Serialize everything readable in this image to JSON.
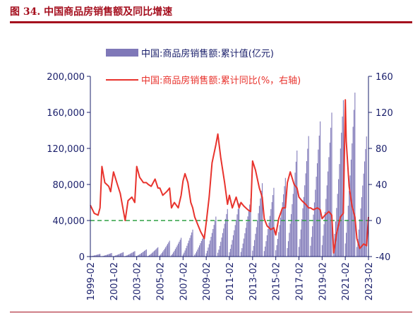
{
  "figure": {
    "title": "图 34. 中国商品房销售额及同比增速"
  },
  "colors": {
    "title": "#a50f1e",
    "bars": "#7f78b8",
    "line": "#e8332d",
    "zero_line": "#2ea043",
    "axis": "#1a1f6b"
  },
  "chart_data": {
    "type": "bar",
    "title": "",
    "legend_position": "top",
    "grid": false,
    "x_tick_labels": [
      "1999-02",
      "2001-02",
      "2003-02",
      "2005-02",
      "2007-02",
      "2009-02",
      "2011-02",
      "2013-02",
      "2015-02",
      "2017-02",
      "2019-02",
      "2021-02",
      "2023-02"
    ],
    "y_left": {
      "ylim": [
        0,
        200000
      ],
      "ticks": [
        "0",
        "40,000",
        "80,000",
        "120,000",
        "160,000",
        "200,000"
      ]
    },
    "y_right": {
      "ylim": [
        -40,
        160
      ],
      "ticks": [
        "-40",
        "0",
        "40",
        "80",
        "120",
        "160"
      ]
    },
    "series": [
      {
        "name": "中国:商品房销售额:累计值(亿元)",
        "kind": "bar",
        "axis": "left",
        "year_totals": [
          {
            "year": 1999,
            "total": 2987
          },
          {
            "year": 2000,
            "total": 3935
          },
          {
            "year": 2001,
            "total": 4863
          },
          {
            "year": 2002,
            "total": 6032
          },
          {
            "year": 2003,
            "total": 7956
          },
          {
            "year": 2004,
            "total": 10376
          },
          {
            "year": 2005,
            "total": 17576
          },
          {
            "year": 2006,
            "total": 20826
          },
          {
            "year": 2007,
            "total": 29889
          },
          {
            "year": 2008,
            "total": 25068
          },
          {
            "year": 2009,
            "total": 44355
          },
          {
            "year": 2010,
            "total": 52721
          },
          {
            "year": 2011,
            "total": 59119
          },
          {
            "year": 2012,
            "total": 64456
          },
          {
            "year": 2013,
            "total": 81428
          },
          {
            "year": 2014,
            "total": 76292
          },
          {
            "year": 2015,
            "total": 87281
          },
          {
            "year": 2016,
            "total": 117627
          },
          {
            "year": 2017,
            "total": 133701
          },
          {
            "year": 2018,
            "total": 149973
          },
          {
            "year": 2019,
            "total": 159725
          },
          {
            "year": 2020,
            "total": 173613
          },
          {
            "year": 2021,
            "total": 181930
          },
          {
            "year": 2022,
            "total": 133308
          },
          {
            "year": 2023,
            "total": 8545
          }
        ]
      },
      {
        "name": "中国:商品房销售额:累计同比(%，右轴)",
        "kind": "line",
        "axis": "right",
        "points": [
          {
            "x": "1999-02",
            "y": 17
          },
          {
            "x": "1999-06",
            "y": 8
          },
          {
            "x": "1999-10",
            "y": 6
          },
          {
            "x": "1999-12",
            "y": 14
          },
          {
            "x": "2000-02",
            "y": 60
          },
          {
            "x": "2000-05",
            "y": 42
          },
          {
            "x": "2000-09",
            "y": 38
          },
          {
            "x": "2000-11",
            "y": 32
          },
          {
            "x": "2001-02",
            "y": 54
          },
          {
            "x": "2001-06",
            "y": 40
          },
          {
            "x": "2001-09",
            "y": 30
          },
          {
            "x": "2001-12",
            "y": 12
          },
          {
            "x": "2002-02",
            "y": 0
          },
          {
            "x": "2002-05",
            "y": 22
          },
          {
            "x": "2002-09",
            "y": 26
          },
          {
            "x": "2002-12",
            "y": 20
          },
          {
            "x": "2003-02",
            "y": 60
          },
          {
            "x": "2003-05",
            "y": 48
          },
          {
            "x": "2003-09",
            "y": 42
          },
          {
            "x": "2003-12",
            "y": 42
          },
          {
            "x": "2004-02",
            "y": 40
          },
          {
            "x": "2004-05",
            "y": 38
          },
          {
            "x": "2004-09",
            "y": 46
          },
          {
            "x": "2004-12",
            "y": 36
          },
          {
            "x": "2005-02",
            "y": 36
          },
          {
            "x": "2005-05",
            "y": 28
          },
          {
            "x": "2005-09",
            "y": 32
          },
          {
            "x": "2005-12",
            "y": 36
          },
          {
            "x": "2006-02",
            "y": 14
          },
          {
            "x": "2006-05",
            "y": 20
          },
          {
            "x": "2006-09",
            "y": 14
          },
          {
            "x": "2006-12",
            "y": 28
          },
          {
            "x": "2007-02",
            "y": 44
          },
          {
            "x": "2007-04",
            "y": 52
          },
          {
            "x": "2007-07",
            "y": 42
          },
          {
            "x": "2007-10",
            "y": 20
          },
          {
            "x": "2007-12",
            "y": 14
          },
          {
            "x": "2008-02",
            "y": 4
          },
          {
            "x": "2008-05",
            "y": -4
          },
          {
            "x": "2008-08",
            "y": -12
          },
          {
            "x": "2008-12",
            "y": -20
          },
          {
            "x": "2009-02",
            "y": -2
          },
          {
            "x": "2009-05",
            "y": 26
          },
          {
            "x": "2009-08",
            "y": 64
          },
          {
            "x": "2009-12",
            "y": 84
          },
          {
            "x": "2010-02",
            "y": 96
          },
          {
            "x": "2010-05",
            "y": 70
          },
          {
            "x": "2010-09",
            "y": 42
          },
          {
            "x": "2010-12",
            "y": 18
          },
          {
            "x": "2011-02",
            "y": 28
          },
          {
            "x": "2011-05",
            "y": 14
          },
          {
            "x": "2011-09",
            "y": 26
          },
          {
            "x": "2011-12",
            "y": 14
          },
          {
            "x": "2012-02",
            "y": 20
          },
          {
            "x": "2012-05",
            "y": 16
          },
          {
            "x": "2012-09",
            "y": 12
          },
          {
            "x": "2012-12",
            "y": 10
          },
          {
            "x": "2013-02",
            "y": 66
          },
          {
            "x": "2013-05",
            "y": 56
          },
          {
            "x": "2013-09",
            "y": 36
          },
          {
            "x": "2013-12",
            "y": 26
          },
          {
            "x": "2014-02",
            "y": 2
          },
          {
            "x": "2014-05",
            "y": -6
          },
          {
            "x": "2014-09",
            "y": -10
          },
          {
            "x": "2014-12",
            "y": -8
          },
          {
            "x": "2015-02",
            "y": -16
          },
          {
            "x": "2015-05",
            "y": 2
          },
          {
            "x": "2015-09",
            "y": 14
          },
          {
            "x": "2015-12",
            "y": 14
          },
          {
            "x": "2016-02",
            "y": 42
          },
          {
            "x": "2016-05",
            "y": 54
          },
          {
            "x": "2016-09",
            "y": 40
          },
          {
            "x": "2016-12",
            "y": 36
          },
          {
            "x": "2017-02",
            "y": 26
          },
          {
            "x": "2017-05",
            "y": 22
          },
          {
            "x": "2017-09",
            "y": 18
          },
          {
            "x": "2017-12",
            "y": 14
          },
          {
            "x": "2018-02",
            "y": 14
          },
          {
            "x": "2018-05",
            "y": 12
          },
          {
            "x": "2018-09",
            "y": 14
          },
          {
            "x": "2018-12",
            "y": 12
          },
          {
            "x": "2019-02",
            "y": 2
          },
          {
            "x": "2019-05",
            "y": 6
          },
          {
            "x": "2019-09",
            "y": 10
          },
          {
            "x": "2019-12",
            "y": 6
          },
          {
            "x": "2020-02",
            "y": -36
          },
          {
            "x": "2020-05",
            "y": -14
          },
          {
            "x": "2020-09",
            "y": 4
          },
          {
            "x": "2020-12",
            "y": 8
          },
          {
            "x": "2021-02",
            "y": 134
          },
          {
            "x": "2021-03",
            "y": 88
          },
          {
            "x": "2021-06",
            "y": 38
          },
          {
            "x": "2021-09",
            "y": 16
          },
          {
            "x": "2021-12",
            "y": 4
          },
          {
            "x": "2022-02",
            "y": -20
          },
          {
            "x": "2022-05",
            "y": -31
          },
          {
            "x": "2022-09",
            "y": -26
          },
          {
            "x": "2022-12",
            "y": -28
          },
          {
            "x": "2023-02",
            "y": 4
          }
        ]
      }
    ],
    "reference_line": {
      "axis": "right",
      "y": 0,
      "style": "dashed"
    }
  }
}
